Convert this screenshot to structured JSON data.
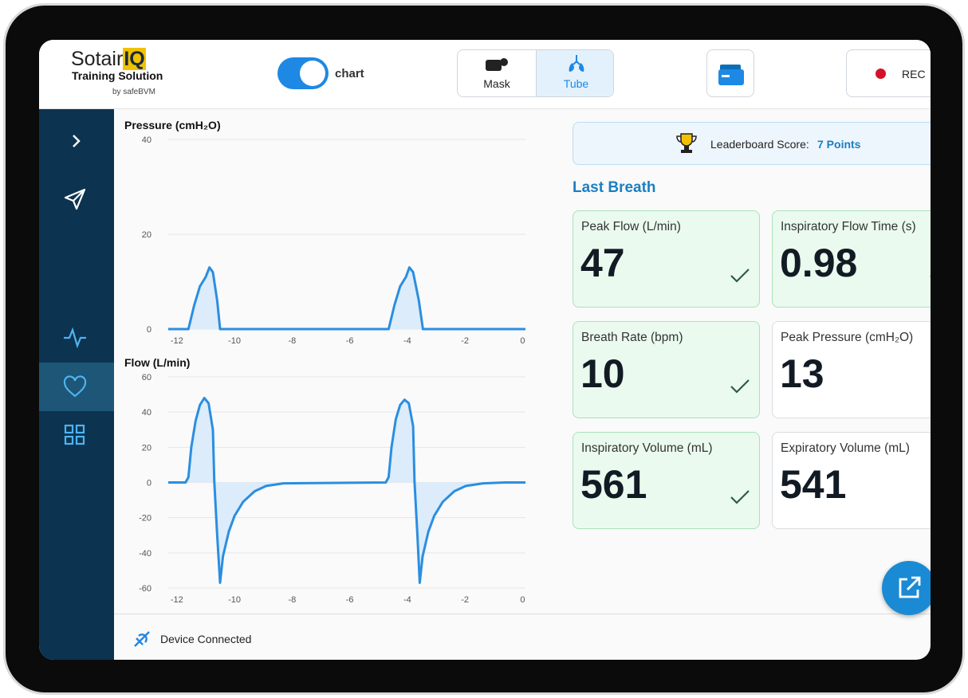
{
  "header": {
    "brand": "Sotair",
    "brand_mark": "IQ",
    "subtitle": "Training Solution",
    "by": "by",
    "maker": "safeBVM",
    "toggle_label": "chart",
    "modes": [
      "Mask",
      "Tube"
    ],
    "rec": "REC"
  },
  "charts": [
    {
      "type": "line",
      "title": "Pressure (cmH₂O)",
      "color": "#2b8ee0",
      "fill_color": "#dcecfa",
      "grid": true,
      "x": [
        -12.3,
        -11.6,
        -11.4,
        -11.2,
        -11.0,
        -10.87,
        -10.75,
        -10.6,
        -10.5,
        -4.65,
        -4.45,
        -4.25,
        -4.05,
        -3.93,
        -3.8,
        -3.6,
        -3.46,
        0.1
      ],
      "values": [
        0,
        0,
        5,
        9,
        11,
        13,
        12,
        6,
        0,
        0,
        5,
        9,
        11,
        13,
        12,
        6,
        0,
        0
      ],
      "xlim": [
        -12.3,
        0.1
      ],
      "ylim": [
        0,
        40
      ],
      "xticks": [
        -12,
        -10,
        -8,
        -6,
        -4,
        -2,
        0
      ],
      "yticks": [
        0,
        20,
        40
      ]
    },
    {
      "type": "line",
      "title": "Flow (L/min)",
      "color": "#2b8ee0",
      "fill_color": "#dcecfa",
      "grid": true,
      "x": [
        -12.3,
        -11.7,
        -11.6,
        -11.5,
        -11.35,
        -11.2,
        -11.05,
        -10.9,
        -10.75,
        -10.7,
        -10.6,
        -10.5,
        -10.4,
        -10.2,
        -10.0,
        -9.7,
        -9.3,
        -8.9,
        -8.3,
        -4.75,
        -4.65,
        -4.55,
        -4.4,
        -4.25,
        -4.1,
        -3.95,
        -3.8,
        -3.75,
        -3.65,
        -3.57,
        -3.47,
        -3.27,
        -3.07,
        -2.77,
        -2.37,
        -1.97,
        -1.37,
        -0.6,
        0.1
      ],
      "values": [
        0,
        0,
        3,
        20,
        35,
        44,
        48,
        45,
        30,
        0,
        -30,
        -57,
        -42,
        -28,
        -19,
        -11,
        -5,
        -2,
        -0.5,
        0,
        3,
        20,
        36,
        44,
        47,
        45,
        32,
        0,
        -30,
        -57,
        -42,
        -28,
        -19,
        -11,
        -5,
        -2,
        -0.5,
        0,
        0
      ],
      "xlim": [
        -12.3,
        0.1
      ],
      "ylim": [
        -60,
        60
      ],
      "xticks": [
        -12,
        -10,
        -8,
        -6,
        -4,
        -2,
        0
      ],
      "yticks": [
        -60,
        -40,
        -20,
        0,
        20,
        40,
        60
      ]
    }
  ],
  "leaderboard": {
    "label": "Leaderboard Score:",
    "score": "7 Points"
  },
  "last_breath": {
    "title": "Last Breath",
    "cards": [
      {
        "label": "Peak Flow (L/min)",
        "value": 47,
        "ok": true
      },
      {
        "label": "Inspiratory Flow Time (s)",
        "value": 0.98,
        "ok": true
      },
      {
        "label": "Breath Rate (bpm)",
        "value": 10,
        "ok": true
      },
      {
        "label": "Peak Pressure (cmH₂O)",
        "value": 13,
        "ok": false
      },
      {
        "label": "Inspiratory Volume (mL)",
        "value": 561,
        "ok": true
      },
      {
        "label": "Expiratory Volume (mL)",
        "value": 541,
        "ok": false
      }
    ]
  },
  "status": {
    "device": "Device Connected"
  }
}
